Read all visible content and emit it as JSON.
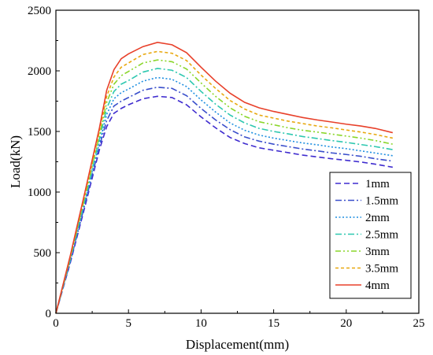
{
  "chart_data": {
    "type": "line",
    "xlabel": "Displacement(mm)",
    "ylabel": "Load(kN)",
    "xlim": [
      0,
      25
    ],
    "ylim": [
      0,
      2500
    ],
    "xticks": [
      0,
      5,
      10,
      15,
      20,
      25
    ],
    "yticks": [
      0,
      500,
      1000,
      1500,
      2000,
      2500
    ],
    "grid": false,
    "legend": "lower-right",
    "series": [
      {
        "name": "1mm",
        "color": "#3f2ccf",
        "dash": "dash",
        "x": [
          0,
          1,
          2,
          3,
          3.5,
          4,
          4.5,
          5,
          6,
          7,
          8,
          9,
          10,
          11,
          12,
          13,
          14,
          15,
          16,
          17,
          18,
          19,
          20,
          21,
          22,
          23.2
        ],
        "y": [
          0,
          420,
          880,
          1350,
          1540,
          1650,
          1690,
          1720,
          1770,
          1790,
          1780,
          1720,
          1620,
          1530,
          1450,
          1400,
          1365,
          1345,
          1325,
          1305,
          1290,
          1275,
          1262,
          1248,
          1230,
          1205
        ]
      },
      {
        "name": "1.5mm",
        "color": "#3a4fcb",
        "dash": "dashdot",
        "x": [
          0,
          1,
          2,
          3,
          3.5,
          4,
          4.5,
          5,
          6,
          7,
          8,
          9,
          10,
          11,
          12,
          13,
          14,
          15,
          16,
          17,
          18,
          19,
          20,
          21,
          22,
          23.2
        ],
        "y": [
          0,
          430,
          900,
          1380,
          1590,
          1710,
          1750,
          1780,
          1840,
          1865,
          1855,
          1795,
          1690,
          1595,
          1515,
          1455,
          1420,
          1395,
          1375,
          1355,
          1340,
          1323,
          1310,
          1295,
          1275,
          1255
        ]
      },
      {
        "name": "2mm",
        "color": "#1f8fe0",
        "dash": "dot",
        "x": [
          0,
          1,
          2,
          3,
          3.5,
          4,
          4.5,
          5,
          6,
          7,
          8,
          9,
          10,
          11,
          12,
          13,
          14,
          15,
          16,
          17,
          18,
          19,
          20,
          21,
          22,
          23.2
        ],
        "y": [
          0,
          440,
          920,
          1410,
          1640,
          1770,
          1820,
          1850,
          1915,
          1945,
          1930,
          1870,
          1760,
          1660,
          1570,
          1510,
          1470,
          1445,
          1425,
          1405,
          1390,
          1372,
          1358,
          1340,
          1322,
          1300
        ]
      },
      {
        "name": "2.5mm",
        "color": "#2ec8b0",
        "dash": "dashdot",
        "x": [
          0,
          1,
          2,
          3,
          3.5,
          4,
          4.5,
          5,
          6,
          7,
          8,
          9,
          10,
          11,
          12,
          13,
          14,
          15,
          16,
          17,
          18,
          19,
          20,
          21,
          22,
          23.2
        ],
        "y": [
          0,
          450,
          940,
          1440,
          1690,
          1830,
          1890,
          1920,
          1990,
          2020,
          2005,
          1945,
          1830,
          1725,
          1635,
          1570,
          1525,
          1500,
          1480,
          1458,
          1442,
          1425,
          1410,
          1392,
          1375,
          1350
        ]
      },
      {
        "name": "3mm",
        "color": "#8ad62a",
        "dash": "dashdotdot",
        "x": [
          0,
          1,
          2,
          3,
          3.5,
          4,
          4.5,
          5,
          6,
          7,
          8,
          9,
          10,
          11,
          12,
          13,
          14,
          15,
          16,
          17,
          18,
          19,
          20,
          21,
          22,
          23.2
        ],
        "y": [
          0,
          460,
          960,
          1470,
          1740,
          1890,
          1960,
          1995,
          2065,
          2090,
          2075,
          2015,
          1900,
          1790,
          1695,
          1625,
          1580,
          1555,
          1530,
          1510,
          1495,
          1478,
          1462,
          1445,
          1425,
          1395
        ]
      },
      {
        "name": "3.5mm",
        "color": "#e8a80e",
        "dash": "shortdash",
        "x": [
          0,
          1,
          2,
          3,
          3.5,
          4,
          4.5,
          5,
          6,
          7,
          8,
          9,
          10,
          11,
          12,
          13,
          14,
          15,
          16,
          17,
          18,
          19,
          20,
          21,
          22,
          23.2
        ],
        "y": [
          0,
          470,
          980,
          1500,
          1790,
          1950,
          2030,
          2065,
          2135,
          2160,
          2145,
          2085,
          1965,
          1855,
          1755,
          1685,
          1635,
          1610,
          1585,
          1565,
          1545,
          1530,
          1512,
          1495,
          1475,
          1445
        ]
      },
      {
        "name": "4mm",
        "color": "#e8402a",
        "dash": "solid",
        "x": [
          0,
          1,
          2,
          3,
          3.5,
          4,
          4.5,
          5,
          6,
          7,
          8,
          9,
          10,
          11,
          12,
          13,
          14,
          15,
          16,
          17,
          18,
          19,
          20,
          21,
          22,
          23.2
        ],
        "y": [
          0,
          480,
          1000,
          1530,
          1840,
          2010,
          2100,
          2140,
          2200,
          2235,
          2215,
          2150,
          2030,
          1915,
          1815,
          1740,
          1695,
          1665,
          1640,
          1615,
          1595,
          1578,
          1560,
          1545,
          1525,
          1490
        ]
      }
    ]
  }
}
